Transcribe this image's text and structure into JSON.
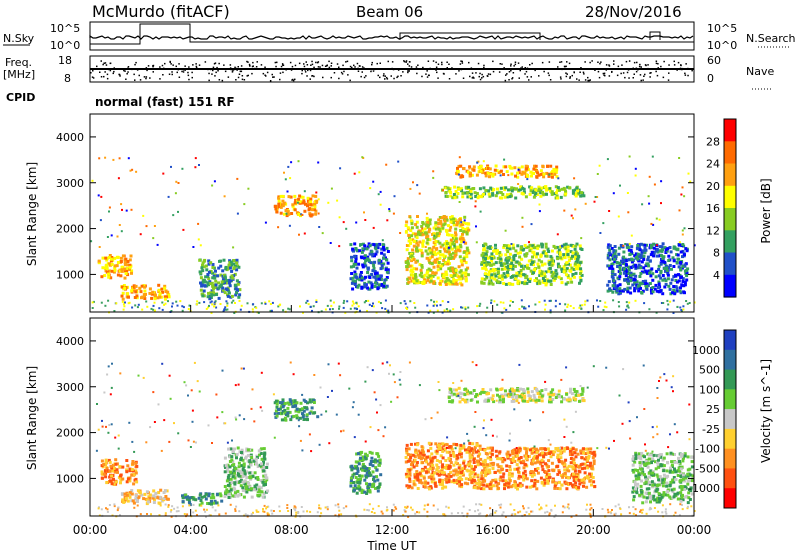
{
  "header": {
    "station": "McMurdo (fitACF)",
    "beam": "Beam 06",
    "date": "28/Nov/2016"
  },
  "top_panels": {
    "nsky_label": "N.Sky",
    "nsky_ticks": [
      "10^5",
      "10^0"
    ],
    "nsearch_label": "N.Search",
    "nsearch_ticks": [
      "10^5",
      "10^0"
    ],
    "freq_label_1": "Freq.",
    "freq_label_2": "[MHz]",
    "freq_ticks": [
      "18",
      "8"
    ],
    "nave_label": "Nave",
    "nave_ticks": [
      "60",
      "0"
    ],
    "cpid_label": "CPID",
    "cpid_text": "normal (fast) 151 RF"
  },
  "x_axis": {
    "ticks": [
      "00:00",
      "04:00",
      "08:00",
      "12:00",
      "16:00",
      "20:00",
      "00:00"
    ],
    "label": "Time UT"
  },
  "chart_data": [
    {
      "type": "heatmap",
      "title": "",
      "ylabel": "Slant Range [km]",
      "xlabel": "Time UT",
      "xlim": [
        0,
        24
      ],
      "ylim": [
        180,
        4500
      ],
      "yticks": [
        1000,
        2000,
        3000,
        4000
      ],
      "colorbar": {
        "label": "Power [dB]",
        "ticks": [
          "28",
          "24",
          "20",
          "16",
          "12",
          "8",
          "4"
        ],
        "colors": [
          "#ff0000",
          "#ff6a00",
          "#ffa010",
          "#ffff00",
          "#88cc22",
          "#33a060",
          "#2050c8",
          "#0000ff"
        ]
      },
      "echo_regions": [
        {
          "t0": 0.3,
          "t1": 1.6,
          "r0": 950,
          "r1": 1450,
          "level": 2
        },
        {
          "t0": 1.2,
          "t1": 3.1,
          "r0": 480,
          "r1": 800,
          "level": 2
        },
        {
          "t0": 4.3,
          "t1": 5.9,
          "r0": 500,
          "r1": 1350,
          "level": 5
        },
        {
          "t0": 7.3,
          "t1": 9.0,
          "r0": 2300,
          "r1": 2750,
          "level": 2
        },
        {
          "t0": 10.3,
          "t1": 11.8,
          "r0": 700,
          "r1": 1700,
          "level": 6
        },
        {
          "t0": 12.5,
          "t1": 15.0,
          "r0": 800,
          "r1": 2300,
          "level": 3
        },
        {
          "t0": 13.8,
          "t1": 19.6,
          "r0": 2700,
          "r1": 2950,
          "level": 4
        },
        {
          "t0": 14.5,
          "t1": 18.5,
          "r0": 3150,
          "r1": 3400,
          "level": 2
        },
        {
          "t0": 15.5,
          "t1": 19.5,
          "r0": 800,
          "r1": 1700,
          "level": 4
        },
        {
          "t0": 20.5,
          "t1": 23.7,
          "r0": 600,
          "r1": 1700,
          "level": 6
        }
      ]
    },
    {
      "type": "heatmap",
      "title": "",
      "ylabel": "Slant Range [km]",
      "xlabel": "Time UT",
      "xlim": [
        0,
        24
      ],
      "ylim": [
        180,
        4500
      ],
      "yticks": [
        1000,
        2000,
        3000,
        4000
      ],
      "colorbar": {
        "label": "Velocity [m s^-1]",
        "ticks": [
          "1000",
          "500",
          "100",
          "25",
          "-25",
          "-100",
          "-500",
          "-1000"
        ],
        "colors": [
          "#2040c0",
          "#3070a0",
          "#339955",
          "#66cc33",
          "#c8c8c8",
          "#ffd030",
          "#ff9020",
          "#ff5010",
          "#ff0000"
        ]
      },
      "echo_regions": [
        {
          "t0": 0.4,
          "t1": 1.8,
          "r0": 900,
          "r1": 1450,
          "level": 6
        },
        {
          "t0": 1.2,
          "t1": 3.1,
          "r0": 480,
          "r1": 780,
          "level": 5
        },
        {
          "t0": 3.6,
          "t1": 5.2,
          "r0": 450,
          "r1": 700,
          "level": 2
        },
        {
          "t0": 5.3,
          "t1": 7.0,
          "r0": 600,
          "r1": 1700,
          "level": 3
        },
        {
          "t0": 7.3,
          "t1": 9.0,
          "r0": 2300,
          "r1": 2750,
          "level": 2
        },
        {
          "t0": 10.3,
          "t1": 11.5,
          "r0": 700,
          "r1": 1600,
          "level": 2
        },
        {
          "t0": 12.5,
          "t1": 15.5,
          "r0": 800,
          "r1": 1800,
          "level": 6
        },
        {
          "t0": 14.2,
          "t1": 19.6,
          "r0": 2700,
          "r1": 3000,
          "level": 4
        },
        {
          "t0": 15.5,
          "t1": 20.0,
          "r0": 800,
          "r1": 1700,
          "level": 6
        },
        {
          "t0": 21.5,
          "t1": 23.9,
          "r0": 500,
          "r1": 1600,
          "level": 3
        }
      ]
    }
  ]
}
